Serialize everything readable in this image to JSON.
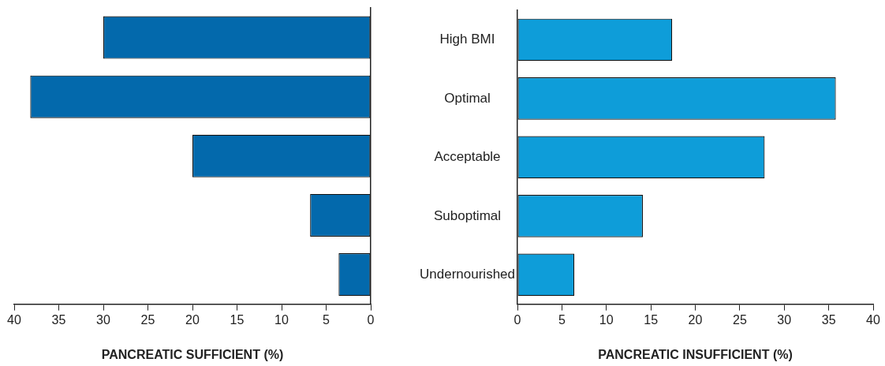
{
  "chart_data": [
    {
      "type": "bar",
      "orientation": "horizontal",
      "categories": [
        null,
        null,
        null,
        null,
        null
      ],
      "values": [
        30,
        38.2,
        20,
        6.8,
        3.6
      ],
      "color": "#0369ac",
      "xlim": [
        40,
        0
      ],
      "xticks": [
        40,
        35,
        30,
        25,
        20,
        15,
        10,
        5,
        0
      ],
      "xlabel": "PANCREATIC SUFFICIENT (%)",
      "tick_labels": "x",
      "grid": false
    },
    {
      "type": "bar",
      "orientation": "horizontal",
      "categories": [
        "High BMI",
        "Optimal",
        "Acceptable",
        "Suboptimal",
        "Undernourished"
      ],
      "values": [
        17.4,
        35.8,
        27.8,
        14.1,
        6.4
      ],
      "color": "#0e9dd9",
      "xlim": [
        0,
        40
      ],
      "xticks": [
        0,
        5,
        10,
        15,
        20,
        25,
        30,
        35,
        40
      ],
      "xlabel": "PANCREATIC INSUFFICIENT (%)",
      "grid": false
    }
  ]
}
